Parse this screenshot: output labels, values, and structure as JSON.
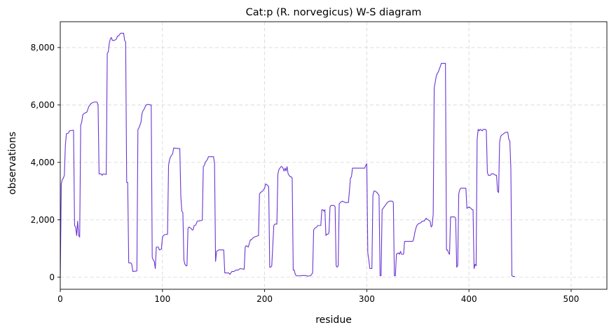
{
  "chart_data": {
    "type": "line",
    "title": "Cat:p (R. norvegicus) W-S diagram",
    "xlabel": "residue",
    "ylabel": "observations",
    "xlim": [
      0,
      535
    ],
    "ylim": [
      -420,
      8900
    ],
    "xticks": [
      0,
      100,
      200,
      300,
      400,
      500
    ],
    "xtick_labels": [
      "0",
      "100",
      "200",
      "300",
      "400",
      "500"
    ],
    "yticks": [
      0,
      2000,
      4000,
      6000,
      8000
    ],
    "ytick_labels": [
      "0",
      "2,000",
      "4,000",
      "6,000",
      "8,000"
    ],
    "grid": true,
    "legend": "none",
    "series": [
      {
        "color": "#6a35d4",
        "points": [
          [
            0,
            0
          ],
          [
            1,
            3250
          ],
          [
            2,
            3400
          ],
          [
            3,
            3450
          ],
          [
            4,
            3550
          ],
          [
            5,
            4600
          ],
          [
            6,
            5000
          ],
          [
            8,
            5020
          ],
          [
            9,
            5100
          ],
          [
            13,
            5120
          ],
          [
            14,
            1800
          ],
          [
            15,
            1750
          ],
          [
            16,
            1450
          ],
          [
            17,
            1950
          ],
          [
            18,
            1450
          ],
          [
            19,
            1400
          ],
          [
            20,
            5300
          ],
          [
            21,
            5400
          ],
          [
            22,
            5650
          ],
          [
            23,
            5700
          ],
          [
            26,
            5750
          ],
          [
            27,
            5850
          ],
          [
            28,
            5950
          ],
          [
            30,
            6050
          ],
          [
            33,
            6100
          ],
          [
            36,
            6100
          ],
          [
            37,
            6000
          ],
          [
            38,
            3600
          ],
          [
            40,
            3600
          ],
          [
            41,
            3550
          ],
          [
            42,
            3600
          ],
          [
            45,
            3580
          ],
          [
            46,
            7800
          ],
          [
            47,
            7850
          ],
          [
            48,
            8150
          ],
          [
            49,
            8300
          ],
          [
            50,
            8350
          ],
          [
            51,
            8250
          ],
          [
            53,
            8250
          ],
          [
            55,
            8300
          ],
          [
            56,
            8400
          ],
          [
            57,
            8400
          ],
          [
            59,
            8500
          ],
          [
            62,
            8500
          ],
          [
            63,
            8250
          ],
          [
            64,
            8200
          ],
          [
            65,
            3300
          ],
          [
            66,
            3300
          ],
          [
            67,
            500
          ],
          [
            69,
            500
          ],
          [
            70,
            450
          ],
          [
            71,
            200
          ],
          [
            75,
            220
          ],
          [
            76,
            5150
          ],
          [
            77,
            5200
          ],
          [
            78,
            5300
          ],
          [
            79,
            5400
          ],
          [
            80,
            5700
          ],
          [
            81,
            5800
          ],
          [
            82,
            5850
          ],
          [
            84,
            6000
          ],
          [
            86,
            6020
          ],
          [
            88,
            6000
          ],
          [
            89,
            6000
          ],
          [
            90,
            700
          ],
          [
            91,
            600
          ],
          [
            92,
            550
          ],
          [
            93,
            300
          ],
          [
            94,
            1050
          ],
          [
            96,
            1050
          ],
          [
            97,
            950
          ],
          [
            99,
            980
          ],
          [
            100,
            1400
          ],
          [
            101,
            1450
          ],
          [
            102,
            1480
          ],
          [
            105,
            1500
          ],
          [
            106,
            3900
          ],
          [
            107,
            4100
          ],
          [
            108,
            4200
          ],
          [
            109,
            4250
          ],
          [
            110,
            4300
          ],
          [
            111,
            4500
          ],
          [
            117,
            4480
          ],
          [
            118,
            2800
          ],
          [
            119,
            2300
          ],
          [
            120,
            2250
          ],
          [
            121,
            600
          ],
          [
            122,
            450
          ],
          [
            123,
            400
          ],
          [
            124,
            400
          ],
          [
            125,
            1700
          ],
          [
            126,
            1750
          ],
          [
            128,
            1700
          ],
          [
            129,
            1650
          ],
          [
            130,
            1650
          ],
          [
            131,
            1800
          ],
          [
            132,
            1800
          ],
          [
            133,
            1850
          ],
          [
            134,
            1950
          ],
          [
            139,
            1980
          ],
          [
            140,
            3850
          ],
          [
            141,
            3900
          ],
          [
            142,
            4000
          ],
          [
            144,
            4100
          ],
          [
            145,
            4200
          ],
          [
            150,
            4200
          ],
          [
            151,
            3950
          ],
          [
            152,
            550
          ],
          [
            153,
            900
          ],
          [
            155,
            950
          ],
          [
            160,
            950
          ],
          [
            161,
            150
          ],
          [
            163,
            150
          ],
          [
            165,
            150
          ],
          [
            166,
            100
          ],
          [
            167,
            150
          ],
          [
            168,
            200
          ],
          [
            170,
            200
          ],
          [
            172,
            250
          ],
          [
            174,
            250
          ],
          [
            176,
            300
          ],
          [
            180,
            280
          ],
          [
            181,
            1050
          ],
          [
            182,
            1100
          ],
          [
            184,
            1050
          ],
          [
            186,
            1300
          ],
          [
            187,
            1300
          ],
          [
            188,
            1350
          ],
          [
            190,
            1400
          ],
          [
            194,
            1450
          ],
          [
            195,
            2900
          ],
          [
            196,
            2950
          ],
          [
            198,
            3000
          ],
          [
            200,
            3100
          ],
          [
            201,
            3250
          ],
          [
            203,
            3200
          ],
          [
            204,
            3150
          ],
          [
            205,
            350
          ],
          [
            206,
            350
          ],
          [
            207,
            400
          ],
          [
            209,
            1800
          ],
          [
            210,
            1850
          ],
          [
            212,
            1850
          ],
          [
            213,
            3600
          ],
          [
            214,
            3750
          ],
          [
            215,
            3800
          ],
          [
            216,
            3850
          ],
          [
            217,
            3850
          ],
          [
            218,
            3800
          ],
          [
            219,
            3700
          ],
          [
            220,
            3800
          ],
          [
            221,
            3700
          ],
          [
            222,
            3850
          ],
          [
            223,
            3600
          ],
          [
            224,
            3550
          ],
          [
            225,
            3500
          ],
          [
            226,
            3500
          ],
          [
            227,
            3450
          ],
          [
            228,
            250
          ],
          [
            229,
            250
          ],
          [
            230,
            100
          ],
          [
            231,
            50
          ],
          [
            233,
            50
          ],
          [
            235,
            50
          ],
          [
            237,
            60
          ],
          [
            240,
            60
          ],
          [
            242,
            40
          ],
          [
            245,
            50
          ],
          [
            247,
            150
          ],
          [
            248,
            1650
          ],
          [
            249,
            1700
          ],
          [
            251,
            1750
          ],
          [
            252,
            1800
          ],
          [
            253,
            1800
          ],
          [
            255,
            1800
          ],
          [
            256,
            2350
          ],
          [
            257,
            2350
          ],
          [
            258,
            2300
          ],
          [
            259,
            2350
          ],
          [
            260,
            1450
          ],
          [
            261,
            1500
          ],
          [
            262,
            1500
          ],
          [
            263,
            1550
          ],
          [
            264,
            2450
          ],
          [
            265,
            2500
          ],
          [
            268,
            2500
          ],
          [
            269,
            2450
          ],
          [
            270,
            400
          ],
          [
            271,
            350
          ],
          [
            272,
            400
          ],
          [
            273,
            2550
          ],
          [
            274,
            2600
          ],
          [
            276,
            2650
          ],
          [
            279,
            2600
          ],
          [
            282,
            2600
          ],
          [
            283,
            3000
          ],
          [
            284,
            3450
          ],
          [
            285,
            3500
          ],
          [
            286,
            3800
          ],
          [
            293,
            3800
          ],
          [
            298,
            3800
          ],
          [
            299,
            3900
          ],
          [
            300,
            3950
          ],
          [
            301,
            850
          ],
          [
            302,
            600
          ],
          [
            303,
            300
          ],
          [
            304,
            300
          ],
          [
            305,
            300
          ],
          [
            306,
            2850
          ],
          [
            307,
            3000
          ],
          [
            308,
            3000
          ],
          [
            310,
            2950
          ],
          [
            311,
            2900
          ],
          [
            312,
            2850
          ],
          [
            313,
            50
          ],
          [
            314,
            50
          ],
          [
            315,
            2350
          ],
          [
            316,
            2400
          ],
          [
            318,
            2500
          ],
          [
            320,
            2600
          ],
          [
            322,
            2650
          ],
          [
            325,
            2650
          ],
          [
            326,
            2600
          ],
          [
            327,
            50
          ],
          [
            328,
            50
          ],
          [
            329,
            800
          ],
          [
            331,
            850
          ],
          [
            332,
            800
          ],
          [
            333,
            900
          ],
          [
            334,
            800
          ],
          [
            336,
            800
          ],
          [
            337,
            1250
          ],
          [
            340,
            1250
          ],
          [
            343,
            1250
          ],
          [
            345,
            1250
          ],
          [
            346,
            1350
          ],
          [
            347,
            1550
          ],
          [
            348,
            1700
          ],
          [
            349,
            1800
          ],
          [
            350,
            1850
          ],
          [
            353,
            1900
          ],
          [
            354,
            1950
          ],
          [
            356,
            1950
          ],
          [
            357,
            2000
          ],
          [
            358,
            2050
          ],
          [
            360,
            2000
          ],
          [
            362,
            1950
          ],
          [
            363,
            1750
          ],
          [
            364,
            1800
          ],
          [
            365,
            2200
          ],
          [
            366,
            6600
          ],
          [
            367,
            6800
          ],
          [
            368,
            7000
          ],
          [
            369,
            7100
          ],
          [
            370,
            7150
          ],
          [
            371,
            7250
          ],
          [
            372,
            7350
          ],
          [
            373,
            7450
          ],
          [
            377,
            7450
          ],
          [
            378,
            950
          ],
          [
            379,
            950
          ],
          [
            380,
            850
          ],
          [
            381,
            800
          ],
          [
            382,
            2100
          ],
          [
            386,
            2100
          ],
          [
            387,
            2050
          ],
          [
            388,
            350
          ],
          [
            389,
            400
          ],
          [
            390,
            2900
          ],
          [
            391,
            3050
          ],
          [
            392,
            3100
          ],
          [
            397,
            3100
          ],
          [
            398,
            2400
          ],
          [
            400,
            2450
          ],
          [
            402,
            2400
          ],
          [
            403,
            2350
          ],
          [
            404,
            2350
          ],
          [
            405,
            300
          ],
          [
            406,
            450
          ],
          [
            407,
            400
          ],
          [
            408,
            4800
          ],
          [
            409,
            5150
          ],
          [
            410,
            5100
          ],
          [
            411,
            5150
          ],
          [
            413,
            5100
          ],
          [
            414,
            5150
          ],
          [
            416,
            5150
          ],
          [
            417,
            5120
          ],
          [
            418,
            3650
          ],
          [
            419,
            3550
          ],
          [
            421,
            3550
          ],
          [
            422,
            3600
          ],
          [
            424,
            3600
          ],
          [
            426,
            3550
          ],
          [
            427,
            3550
          ],
          [
            428,
            3000
          ],
          [
            429,
            2950
          ],
          [
            430,
            4700
          ],
          [
            431,
            4900
          ],
          [
            432,
            4950
          ],
          [
            434,
            5000
          ],
          [
            436,
            5050
          ],
          [
            438,
            5050
          ],
          [
            439,
            4800
          ],
          [
            440,
            4750
          ],
          [
            441,
            3800
          ],
          [
            442,
            50
          ],
          [
            443,
            30
          ],
          [
            444,
            30
          ],
          [
            445,
            30
          ]
        ]
      }
    ]
  }
}
